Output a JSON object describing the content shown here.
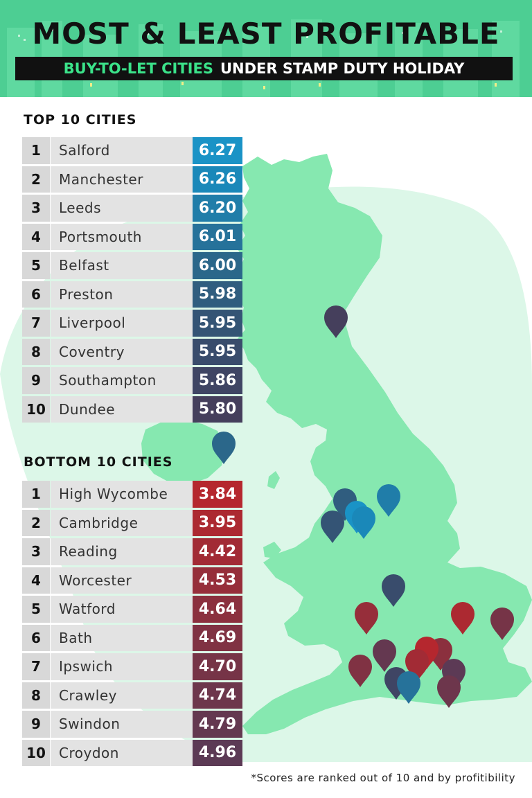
{
  "header": {
    "title": "MOST & LEAST PROFITABLE",
    "subtitle_accent": "BUY-TO-LET CITIES",
    "subtitle_rest": "UNDER STAMP DUTY HOLIDAY"
  },
  "top10": {
    "heading": "TOP 10 CITIES",
    "rows": [
      {
        "rank": "1",
        "city": "Salford",
        "score": "6.27",
        "color": "#1a93c6"
      },
      {
        "rank": "2",
        "city": "Manchester",
        "score": "6.26",
        "color": "#1a88b9"
      },
      {
        "rank": "3",
        "city": "Leeds",
        "score": "6.20",
        "color": "#207da9"
      },
      {
        "rank": "4",
        "city": "Portsmouth",
        "score": "6.01",
        "color": "#26729a"
      },
      {
        "rank": "5",
        "city": "Belfast",
        "score": "6.00",
        "color": "#2b678a"
      },
      {
        "rank": "6",
        "city": "Preston",
        "score": "5.98",
        "color": "#305d7f"
      },
      {
        "rank": "7",
        "city": "Liverpool",
        "score": "5.95",
        "color": "#345475"
      },
      {
        "rank": "8",
        "city": "Coventry",
        "score": "5.95",
        "color": "#394c6c"
      },
      {
        "rank": "9",
        "city": "Southampton",
        "score": "5.86",
        "color": "#3f4564"
      },
      {
        "rank": "10",
        "city": "Dundee",
        "score": "5.80",
        "color": "#453f5c"
      }
    ]
  },
  "bottom10": {
    "heading": "BOTTOM 10 CITIES",
    "rows": [
      {
        "rank": "1",
        "city": "High Wycombe",
        "score": "3.84",
        "color": "#b5272e"
      },
      {
        "rank": "2",
        "city": "Cambridge",
        "score": "3.95",
        "color": "#ac2931"
      },
      {
        "rank": "3",
        "city": "Reading",
        "score": "4.42",
        "color": "#a22b35"
      },
      {
        "rank": "4",
        "city": "Worcester",
        "score": "4.53",
        "color": "#962e3a"
      },
      {
        "rank": "5",
        "city": "Watford",
        "score": "4.64",
        "color": "#8b303e"
      },
      {
        "rank": "6",
        "city": "Bath",
        "score": "4.69",
        "color": "#803243"
      },
      {
        "rank": "7",
        "city": "Ipswich",
        "score": "4.70",
        "color": "#763447"
      },
      {
        "rank": "8",
        "city": "Crawley",
        "score": "4.74",
        "color": "#6d364c"
      },
      {
        "rank": "9",
        "city": "Swindon",
        "score": "4.79",
        "color": "#643850"
      },
      {
        "rank": "10",
        "city": "Croydon",
        "score": "4.96",
        "color": "#5c3a55"
      }
    ]
  },
  "map_pins": [
    {
      "city": "Dundee",
      "color": "#453f5c",
      "icon": "map-pin-icon"
    },
    {
      "city": "Belfast",
      "color": "#2b678a",
      "icon": "map-pin-icon"
    },
    {
      "city": "Preston",
      "color": "#305d7f",
      "icon": "map-pin-icon"
    },
    {
      "city": "Leeds",
      "color": "#207da9",
      "icon": "map-pin-icon"
    },
    {
      "city": "Liverpool",
      "color": "#345475",
      "icon": "map-pin-icon"
    },
    {
      "city": "Salford",
      "color": "#1a93c6",
      "icon": "map-pin-icon"
    },
    {
      "city": "Manchester",
      "color": "#1a88b9",
      "icon": "map-pin-icon"
    },
    {
      "city": "Coventry",
      "color": "#394c6c",
      "icon": "map-pin-icon"
    },
    {
      "city": "Worcester",
      "color": "#962e3a",
      "icon": "map-pin-icon"
    },
    {
      "city": "Cambridge",
      "color": "#ac2931",
      "icon": "map-pin-icon"
    },
    {
      "city": "Ipswich",
      "color": "#763447",
      "icon": "map-pin-icon"
    },
    {
      "city": "Swindon",
      "color": "#643850",
      "icon": "map-pin-icon"
    },
    {
      "city": "Watford",
      "color": "#8b303e",
      "icon": "map-pin-icon"
    },
    {
      "city": "High Wycombe",
      "color": "#b5272e",
      "icon": "map-pin-icon"
    },
    {
      "city": "Reading",
      "color": "#a22b35",
      "icon": "map-pin-icon"
    },
    {
      "city": "Bath",
      "color": "#803243",
      "icon": "map-pin-icon"
    },
    {
      "city": "Croydon",
      "color": "#5c3a55",
      "icon": "map-pin-icon"
    },
    {
      "city": "Southampton",
      "color": "#3f4564",
      "icon": "map-pin-icon"
    },
    {
      "city": "Portsmouth",
      "color": "#26729a",
      "icon": "map-pin-icon"
    },
    {
      "city": "Crawley",
      "color": "#6d364c",
      "icon": "map-pin-icon"
    }
  ],
  "colors": {
    "header_green": "#4dce93",
    "land": "#86e8b0",
    "sea_halo": "#dcf7e8",
    "subtitle_accent": "#3be38a"
  },
  "footnote": "*Scores are ranked out of 10 and by profitibility"
}
